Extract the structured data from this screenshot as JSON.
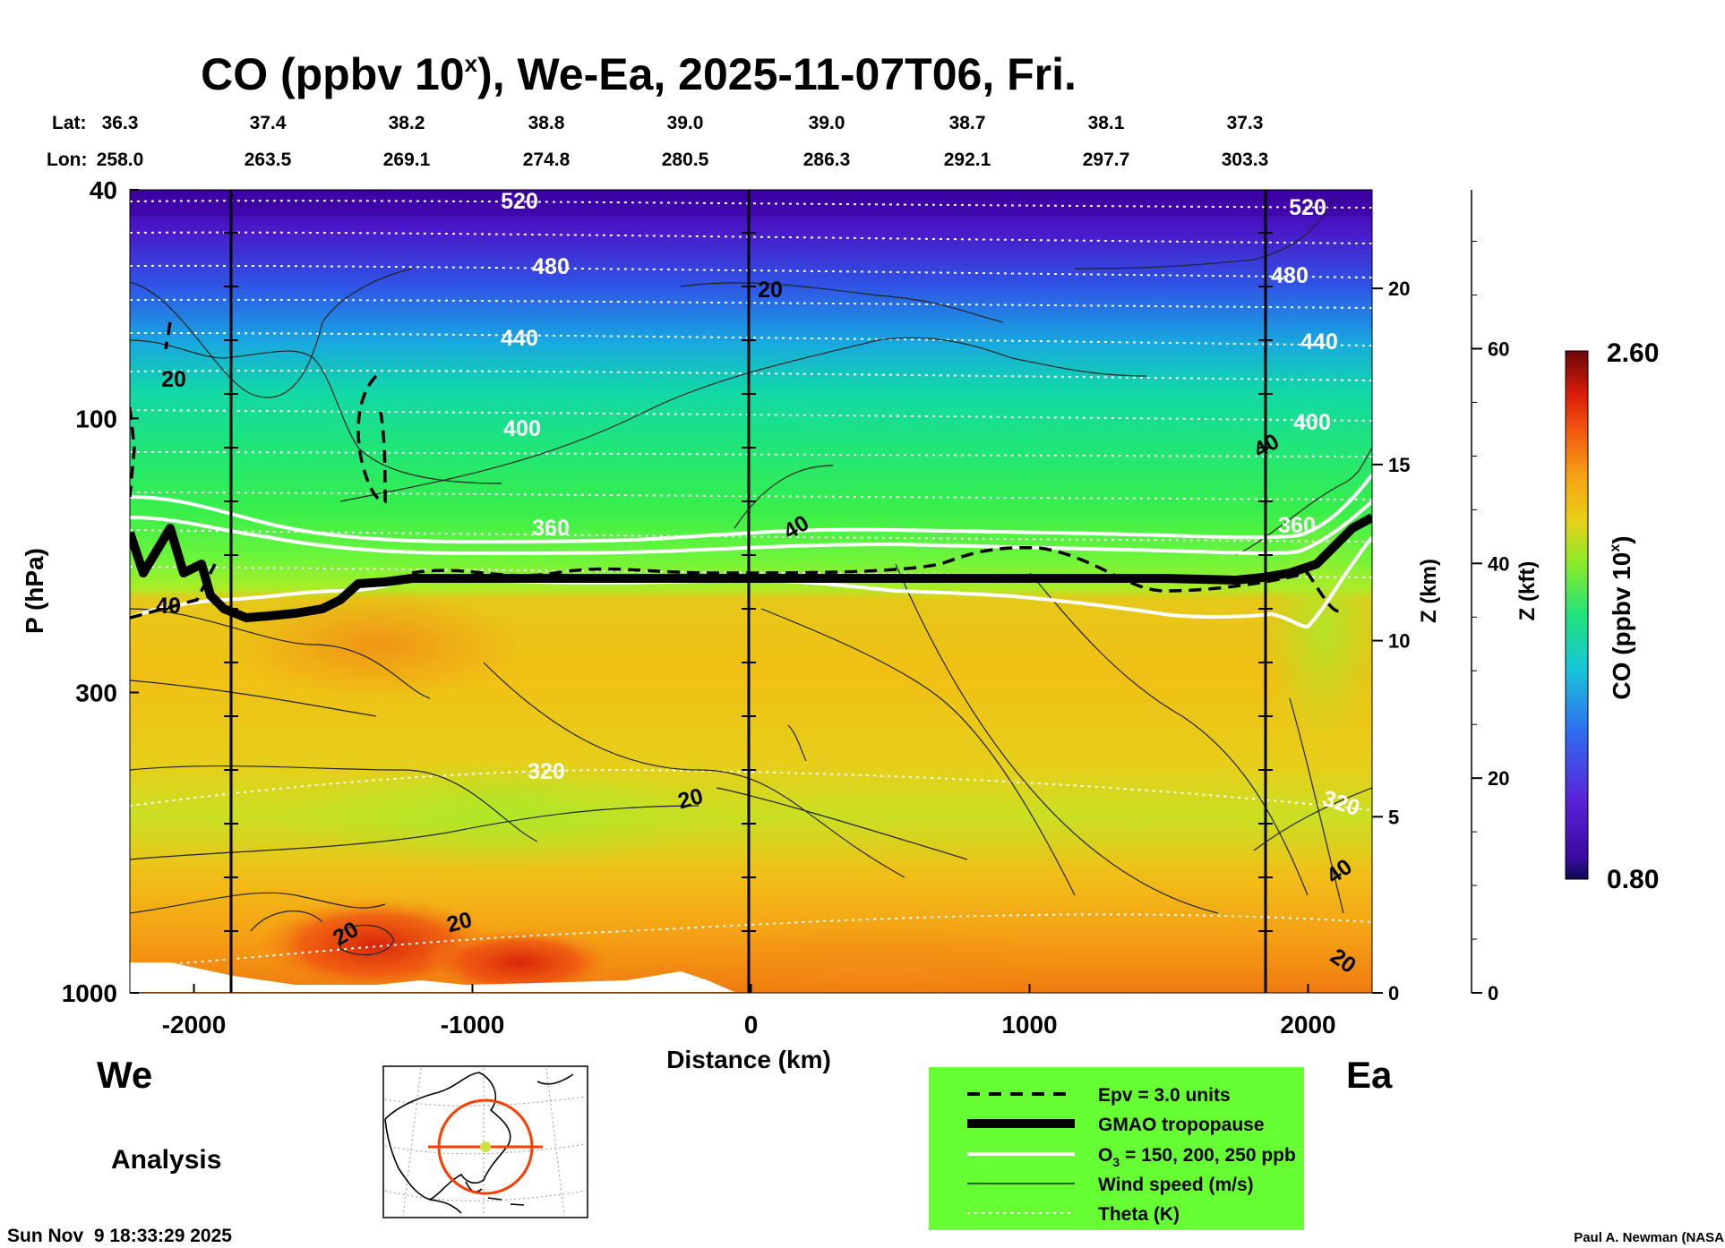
{
  "title": {
    "main": "CO (ppbv 10",
    "sup": "x",
    "rest": "), We-Ea, 2025-11-07T06, Fri."
  },
  "header": {
    "lat_label": "Lat:",
    "lon_label": "Lon:",
    "lat": [
      "36.3",
      "37.4",
      "38.2",
      "38.8",
      "39.0",
      "39.0",
      "38.7",
      "38.1",
      "37.3"
    ],
    "lon": [
      "258.0",
      "263.5",
      "269.1",
      "274.8",
      "280.5",
      "286.3",
      "292.1",
      "297.7",
      "303.3"
    ]
  },
  "chart_data": {
    "type": "heatmap",
    "xlabel": "Distance (km)",
    "ylabel": "P (hPa)",
    "xlim": [
      -2230,
      2230
    ],
    "ylim": [
      1000,
      40
    ],
    "y_scale": "log",
    "x_ticks": [
      "-2000",
      "-1000",
      "0",
      "1000",
      "2000"
    ],
    "y_ticks": [
      "40",
      "100",
      "300",
      "1000"
    ],
    "z_km_label": "Z (km)",
    "z_km_ticks": [
      "0",
      "5",
      "10",
      "15",
      "20"
    ],
    "z_kft_label": "Z (kft)",
    "z_kft_ticks": [
      "0",
      "20",
      "40",
      "60"
    ],
    "vertical_lines_km": [
      -1850,
      0,
      1850
    ],
    "colorbar": {
      "label": "CO (ppbv 10",
      "label_sup": "x",
      "label_end": ")",
      "min": "0.80",
      "max": "2.60"
    },
    "theta_labels": [
      "520",
      "480",
      "440",
      "400",
      "360",
      "320",
      "520",
      "480",
      "440",
      "400",
      "360",
      "320"
    ],
    "wind_labels": [
      "20",
      "20",
      "40",
      "40",
      "20",
      "20",
      "20",
      "40",
      "40",
      "20"
    ],
    "tropopause_hPa_approx": 190
  },
  "footer": {
    "left_label": "We",
    "right_label": "Ea",
    "analysis": "Analysis",
    "timestamp": "Sun Nov  9 18:33:29 2025",
    "credit": "Paul A. Newman (NASA"
  },
  "legend": {
    "bg_color": "#66ff33",
    "items": [
      {
        "label": "Epv = 3.0 units"
      },
      {
        "label": "GMAO tropopause"
      },
      {
        "label": "O",
        "sub": "3",
        "rest": " = 150, 200, 250 ppb"
      },
      {
        "label": "Wind speed (m/s)"
      },
      {
        "label": "Theta (K)"
      }
    ]
  }
}
